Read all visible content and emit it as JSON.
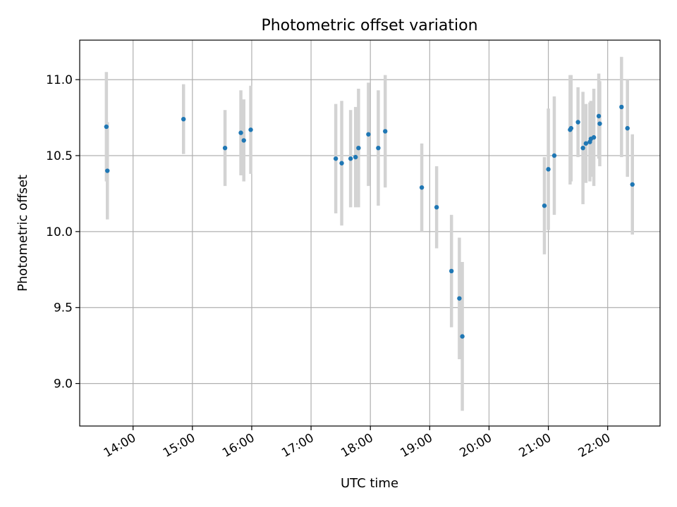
{
  "chart_data": {
    "type": "scatter",
    "title": "Photometric offset variation",
    "xlabel": "UTC time",
    "ylabel": "Photometric offset",
    "x_tick_labels": [
      "14:00",
      "15:00",
      "16:00",
      "17:00",
      "18:00",
      "19:00",
      "20:00",
      "21:00",
      "22:00"
    ],
    "y_tick_labels": [
      "9.0",
      "9.5",
      "10.0",
      "10.5",
      "11.0"
    ],
    "xlim": [
      "13:06",
      "22:53"
    ],
    "ylim": [
      8.72,
      11.26
    ],
    "grid": true,
    "colors": {
      "point": "#1f77b4",
      "error_bar": "#d3d3d3",
      "grid": "#b0b0b0"
    },
    "points": [
      {
        "x": "13:33",
        "y": 10.69,
        "err": 0.36
      },
      {
        "x": "13:34",
        "y": 10.4,
        "err": 0.32
      },
      {
        "x": "14:51",
        "y": 10.74,
        "err": 0.23
      },
      {
        "x": "15:33",
        "y": 10.55,
        "err": 0.25
      },
      {
        "x": "15:49",
        "y": 10.65,
        "err": 0.28
      },
      {
        "x": "15:52",
        "y": 10.6,
        "err": 0.27
      },
      {
        "x": "15:59",
        "y": 10.67,
        "err": 0.29
      },
      {
        "x": "17:25",
        "y": 10.48,
        "err": 0.36
      },
      {
        "x": "17:31",
        "y": 10.45,
        "err": 0.41
      },
      {
        "x": "17:40",
        "y": 10.48,
        "err": 0.32
      },
      {
        "x": "17:45",
        "y": 10.49,
        "err": 0.33
      },
      {
        "x": "17:48",
        "y": 10.55,
        "err": 0.39
      },
      {
        "x": "17:58",
        "y": 10.64,
        "err": 0.34
      },
      {
        "x": "18:08",
        "y": 10.55,
        "err": 0.38
      },
      {
        "x": "18:15",
        "y": 10.66,
        "err": 0.37
      },
      {
        "x": "18:52",
        "y": 10.29,
        "err": 0.29
      },
      {
        "x": "19:07",
        "y": 10.16,
        "err": 0.27
      },
      {
        "x": "19:22",
        "y": 9.74,
        "err": 0.37
      },
      {
        "x": "19:30",
        "y": 9.56,
        "err": 0.4
      },
      {
        "x": "19:33",
        "y": 9.31,
        "err": 0.49
      },
      {
        "x": "20:56",
        "y": 10.17,
        "err": 0.32
      },
      {
        "x": "21:00",
        "y": 10.41,
        "err": 0.4
      },
      {
        "x": "21:06",
        "y": 10.5,
        "err": 0.39
      },
      {
        "x": "21:22",
        "y": 10.67,
        "err": 0.36
      },
      {
        "x": "21:23",
        "y": 10.68,
        "err": 0.35
      },
      {
        "x": "21:30",
        "y": 10.72,
        "err": 0.23
      },
      {
        "x": "21:35",
        "y": 10.55,
        "err": 0.37
      },
      {
        "x": "21:38",
        "y": 10.58,
        "err": 0.26
      },
      {
        "x": "21:42",
        "y": 10.59,
        "err": 0.26
      },
      {
        "x": "21:43",
        "y": 10.61,
        "err": 0.25
      },
      {
        "x": "21:46",
        "y": 10.62,
        "err": 0.32
      },
      {
        "x": "21:51",
        "y": 10.76,
        "err": 0.28
      },
      {
        "x": "21:52",
        "y": 10.71,
        "err": 0.28
      },
      {
        "x": "22:14",
        "y": 10.82,
        "err": 0.33
      },
      {
        "x": "22:20",
        "y": 10.68,
        "err": 0.32
      },
      {
        "x": "22:25",
        "y": 10.31,
        "err": 0.33
      }
    ]
  }
}
